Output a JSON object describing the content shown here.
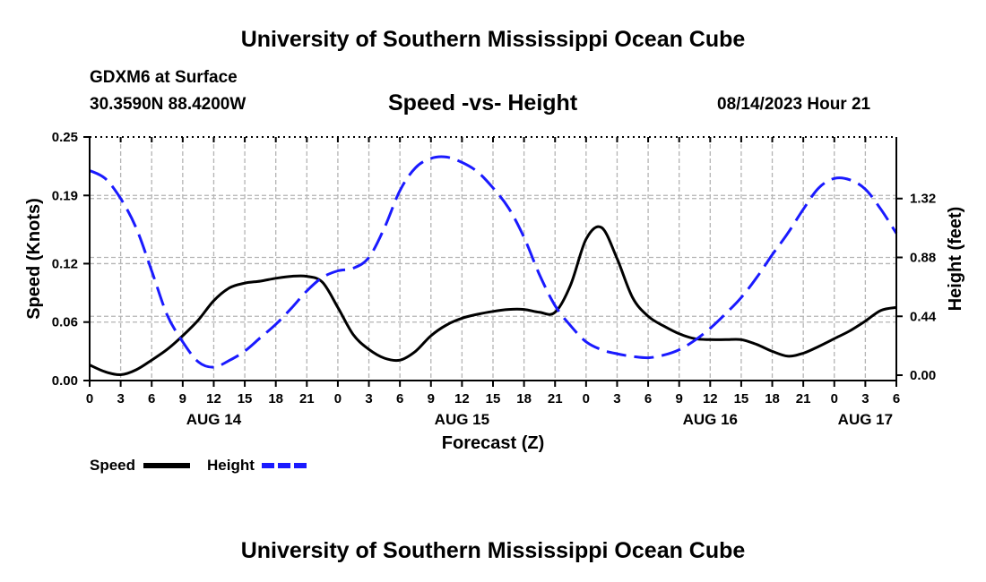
{
  "page": {
    "title_top": "University of Southern Mississippi Ocean Cube",
    "title_bottom": "University of Southern Mississippi Ocean Cube",
    "station": "GDXM6 at Surface",
    "location": "30.3590N  88.4200W",
    "plot_title": "Speed -vs- Height",
    "datetime": "08/14/2023 Hour 21"
  },
  "colors": {
    "speed": "#000000",
    "height": "#1a1aff",
    "grid": "#b4b4b4"
  },
  "chart_data": {
    "type": "line",
    "title": "Speed -vs- Height",
    "xlabel": "Forecast (Z)",
    "ylabel": "Speed (Knots)",
    "y2label": "Height (feet)",
    "x_unit": "hours since Aug 14 00Z",
    "xlim": [
      0,
      78
    ],
    "ylim": [
      0,
      0.25
    ],
    "y2lim": [
      -0.04,
      1.78
    ],
    "x_ticks": [
      0,
      3,
      6,
      9,
      12,
      15,
      18,
      21,
      24,
      27,
      30,
      33,
      36,
      39,
      42,
      45,
      48,
      51,
      54,
      57,
      60,
      63,
      66,
      69,
      72,
      75,
      78
    ],
    "x_tick_labels": [
      "0",
      "3",
      "6",
      "9",
      "12",
      "15",
      "18",
      "21",
      "0",
      "3",
      "6",
      "9",
      "12",
      "15",
      "18",
      "21",
      "0",
      "3",
      "6",
      "9",
      "12",
      "15",
      "18",
      "21",
      "0",
      "3",
      "6"
    ],
    "date_labels": [
      {
        "x": 12,
        "label": "AUG 14"
      },
      {
        "x": 36,
        "label": "AUG 15"
      },
      {
        "x": 60,
        "label": "AUG 16"
      },
      {
        "x": 75,
        "label": "AUG 17"
      }
    ],
    "y_ticks": [
      0.0,
      0.06,
      0.12,
      0.19,
      0.25
    ],
    "y_tick_labels": [
      "0.00",
      "0.06",
      "0.12",
      "0.19",
      "0.25"
    ],
    "y2_ticks": [
      0.0,
      0.44,
      0.88,
      1.32
    ],
    "y2_tick_labels": [
      "0.00",
      "0.44",
      "0.88",
      "1.32"
    ],
    "series": [
      {
        "name": "Speed",
        "axis": "left",
        "style": "solid",
        "x": [
          0,
          1.5,
          3,
          4.5,
          6,
          7.5,
          9,
          10.5,
          12,
          13.5,
          15,
          16.5,
          18,
          19.5,
          21,
          22.5,
          24,
          25.5,
          27,
          28.5,
          30,
          31.5,
          33,
          34.5,
          36,
          37.5,
          39,
          40.5,
          42,
          43.5,
          45,
          46.5,
          48,
          49.5,
          51,
          52.5,
          54,
          55.5,
          57,
          58.5,
          60,
          61.5,
          63,
          64.5,
          66,
          67.5,
          69,
          70.5,
          72,
          73.5,
          75,
          76.5,
          78
        ],
        "values": [
          0.016,
          0.009,
          0.006,
          0.011,
          0.021,
          0.032,
          0.046,
          0.062,
          0.082,
          0.095,
          0.1,
          0.102,
          0.105,
          0.107,
          0.107,
          0.101,
          0.075,
          0.047,
          0.032,
          0.023,
          0.021,
          0.03,
          0.046,
          0.057,
          0.064,
          0.068,
          0.071,
          0.073,
          0.073,
          0.07,
          0.07,
          0.098,
          0.145,
          0.157,
          0.125,
          0.085,
          0.066,
          0.056,
          0.048,
          0.043,
          0.042,
          0.042,
          0.042,
          0.037,
          0.03,
          0.025,
          0.028,
          0.035,
          0.043,
          0.051,
          0.061,
          0.072,
          0.075
        ]
      },
      {
        "name": "Height",
        "axis": "right",
        "style": "dashed",
        "x": [
          0,
          1.5,
          3,
          4.5,
          6,
          7.5,
          9,
          10.5,
          12,
          13.5,
          15,
          16.5,
          18,
          19.5,
          21,
          22.5,
          24,
          25.5,
          27,
          28.5,
          30,
          31.5,
          33,
          34.5,
          36,
          37.5,
          39,
          40.5,
          42,
          43.5,
          45,
          46.5,
          48,
          49.5,
          51,
          52.5,
          54,
          55.5,
          57,
          58.5,
          60,
          61.5,
          63,
          64.5,
          66,
          67.5,
          69,
          70.5,
          72,
          73.5,
          75,
          76.5,
          78
        ],
        "values": [
          1.53,
          1.47,
          1.32,
          1.1,
          0.78,
          0.45,
          0.25,
          0.1,
          0.06,
          0.11,
          0.18,
          0.28,
          0.38,
          0.5,
          0.63,
          0.73,
          0.78,
          0.8,
          0.88,
          1.1,
          1.38,
          1.55,
          1.62,
          1.63,
          1.59,
          1.52,
          1.4,
          1.25,
          1.03,
          0.75,
          0.52,
          0.37,
          0.25,
          0.19,
          0.16,
          0.14,
          0.13,
          0.15,
          0.19,
          0.26,
          0.35,
          0.46,
          0.58,
          0.73,
          0.9,
          1.06,
          1.24,
          1.4,
          1.47,
          1.46,
          1.39,
          1.24,
          1.06
        ]
      }
    ],
    "legend": [
      {
        "label": "Speed",
        "style": "solid"
      },
      {
        "label": "Height",
        "style": "dashed"
      }
    ],
    "legend_position": "bottom-left",
    "grid": true
  }
}
